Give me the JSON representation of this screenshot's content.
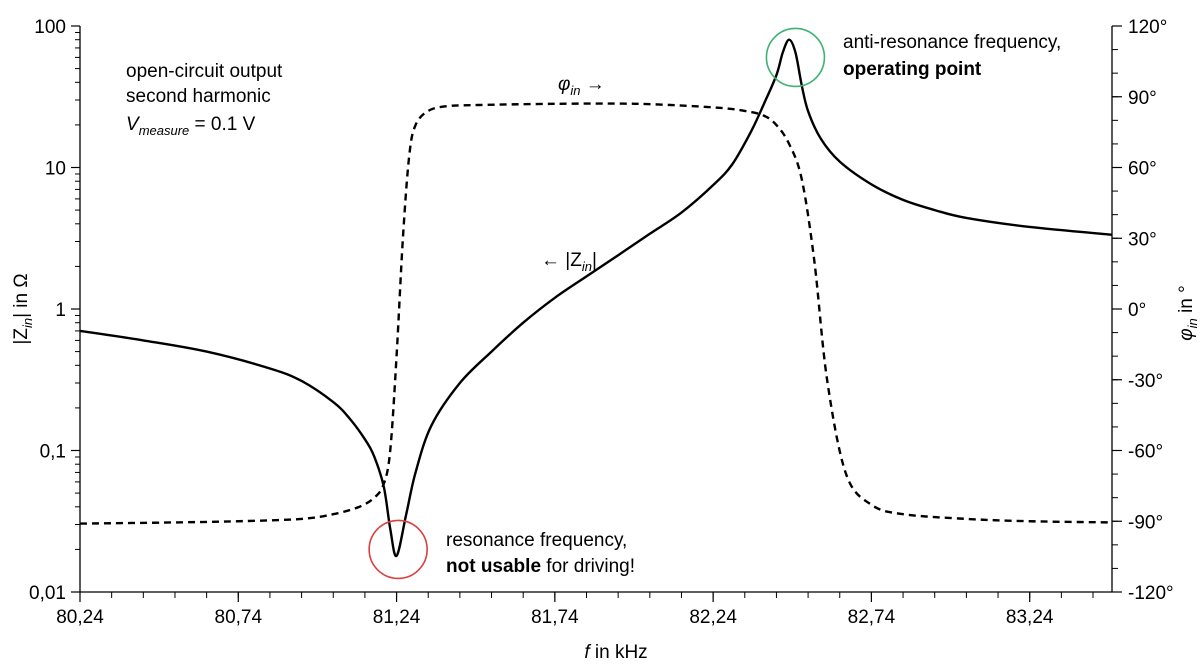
{
  "chart_data": {
    "type": "line",
    "x_axis": {
      "label_italic": "f",
      "label_rest": " in kHz",
      "range": [
        80.24,
        83.5
      ],
      "ticks": [
        80.24,
        80.74,
        81.24,
        81.74,
        82.24,
        82.74,
        83.24
      ],
      "tick_labels": [
        "80,24",
        "80,74",
        "81,24",
        "81,74",
        "82,24",
        "82,74",
        "83,24"
      ],
      "minor_step": 0.1
    },
    "y_left": {
      "label_pre": "|Z",
      "label_sub": "in",
      "label_post": "| in Ω",
      "scale": "log",
      "range": [
        0.01,
        100
      ],
      "ticks": [
        0.01,
        0.1,
        1,
        10,
        100
      ],
      "tick_labels": [
        "0,01",
        "0,1",
        "1",
        "10",
        "100"
      ]
    },
    "y_right": {
      "label_main": "φ",
      "label_sub": "in",
      "label_post": " in °",
      "range": [
        -120,
        120
      ],
      "ticks": [
        -120,
        -90,
        -60,
        -30,
        0,
        30,
        60,
        90,
        120
      ],
      "tick_labels": [
        "-120°",
        "-90°",
        "-60°",
        "-30°",
        "0°",
        "30°",
        "60°",
        "90°",
        "120°"
      ],
      "minor_step": 10
    },
    "series": [
      {
        "name": "|Zin|",
        "axis": "left",
        "style": "solid",
        "color": "#000000",
        "x": [
          80.24,
          80.44,
          80.64,
          80.84,
          80.94,
          81.04,
          81.09,
          81.14,
          81.17,
          81.2,
          81.22,
          81.24,
          81.27,
          81.3,
          81.35,
          81.44,
          81.54,
          81.64,
          81.74,
          81.84,
          81.94,
          82.04,
          82.14,
          82.24,
          82.3,
          82.36,
          82.4,
          82.44,
          82.46,
          82.48,
          82.5,
          82.52,
          82.54,
          82.58,
          82.64,
          82.74,
          82.84,
          82.94,
          83.04,
          83.24,
          83.5
        ],
        "y": [
          0.7,
          0.6,
          0.5,
          0.38,
          0.31,
          0.22,
          0.17,
          0.12,
          0.09,
          0.055,
          0.028,
          0.018,
          0.035,
          0.07,
          0.15,
          0.3,
          0.5,
          0.8,
          1.2,
          1.7,
          2.4,
          3.4,
          4.8,
          7.5,
          10.5,
          18,
          28,
          45,
          65,
          80,
          65,
          38,
          25,
          16,
          11,
          7.6,
          5.9,
          5,
          4.4,
          3.8,
          3.35
        ]
      },
      {
        "name": "φin",
        "axis": "right",
        "style": "dashed",
        "color": "#000000",
        "x": [
          80.24,
          80.54,
          80.74,
          80.94,
          81.04,
          81.12,
          81.17,
          81.2,
          81.22,
          81.24,
          81.26,
          81.28,
          81.3,
          81.34,
          81.4,
          81.5,
          81.74,
          82.0,
          82.24,
          82.34,
          82.4,
          82.44,
          82.48,
          82.52,
          82.56,
          82.6,
          82.66,
          82.74,
          82.84,
          83.04,
          83.24,
          83.5
        ],
        "y": [
          -91,
          -90.5,
          -90,
          -89,
          -87,
          -84,
          -80,
          -74,
          -60,
          -20,
          30,
          65,
          78,
          84,
          86,
          86.5,
          87,
          87,
          85.5,
          84,
          82,
          78,
          70,
          55,
          20,
          -30,
          -70,
          -83,
          -87,
          -89,
          -90,
          -90.5
        ]
      }
    ],
    "annotations": {
      "info_line1": "open-circuit output",
      "info_line2": "second harmonic",
      "info_line3_main": "V",
      "info_line3_sub": "measure",
      "info_line3_rest": " = 0.1 V",
      "phi_label_main": "φ",
      "phi_label_sub": "in",
      "phi_label_arrow": " →",
      "z_label_arrow": "← |Z",
      "z_label_sub": "in",
      "z_label_end": "|",
      "anti_line1": "anti-resonance frequency,",
      "anti_line2": "operating point",
      "res_line1": "resonance frequency,",
      "res_line2_bold": "not usable",
      "res_line2_rest": " for driving!",
      "anti_circle": {
        "x": 82.5,
        "y": 60,
        "color": "#3cb371"
      },
      "res_circle": {
        "x": 81.245,
        "y": 0.02,
        "color": "#d94040"
      }
    }
  }
}
